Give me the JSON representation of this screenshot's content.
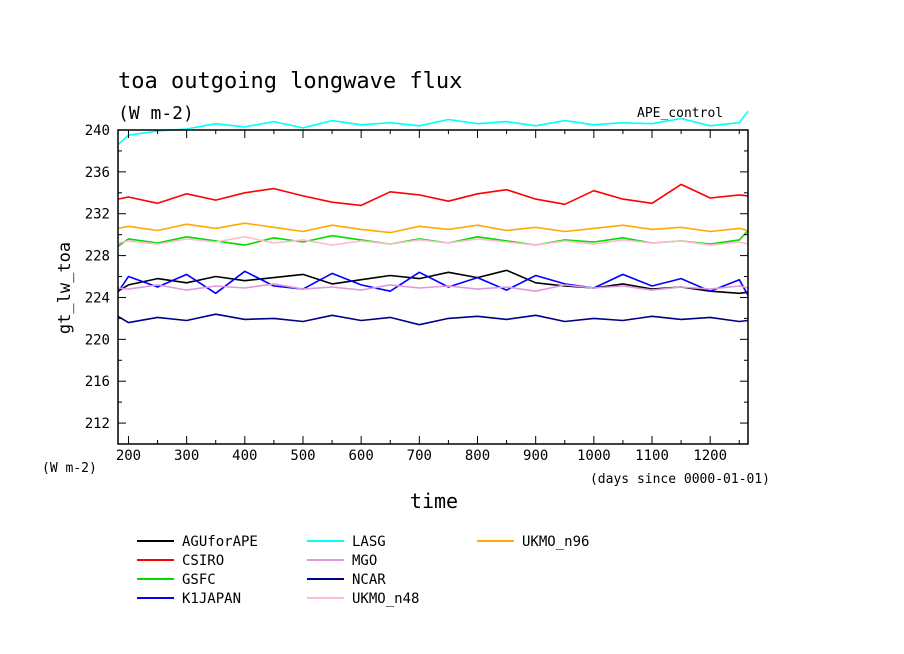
{
  "chart_data": {
    "type": "line",
    "title": "toa outgoing longwave flux",
    "units": "(W m-2)",
    "units_axis_label": "(W m-2)",
    "experiment": "APE_control",
    "ylabel": "gt_lw_toa",
    "xlabel": "time",
    "x_unit_note": "(days since 0000-01-01)",
    "xlim": [
      182,
      1265
    ],
    "ylim": [
      210,
      240
    ],
    "xticks": [
      200,
      300,
      400,
      500,
      600,
      700,
      800,
      900,
      1000,
      1100,
      1200
    ],
    "xtick_labels": [
      "200",
      "300",
      "400",
      "500",
      "600",
      "700",
      "800",
      "900",
      "1000",
      "1100",
      "1200"
    ],
    "yticks": [
      212,
      216,
      220,
      224,
      228,
      232,
      236,
      240
    ],
    "ytick_labels": [
      "212",
      "216",
      "220",
      "224",
      "228",
      "232",
      "236",
      "240"
    ],
    "grid": false,
    "legend_position": "bottom",
    "series": [
      {
        "name": "AGUforAPE",
        "color": "#000000",
        "x": [
          182,
          200,
          250,
          300,
          350,
          400,
          450,
          500,
          550,
          600,
          650,
          700,
          750,
          800,
          850,
          900,
          950,
          1000,
          1050,
          1100,
          1150,
          1200,
          1250,
          1265
        ],
        "values": [
          224.6,
          225.2,
          225.8,
          225.4,
          226.0,
          225.6,
          225.9,
          226.2,
          225.3,
          225.7,
          226.1,
          225.8,
          226.4,
          225.9,
          226.6,
          225.4,
          225.1,
          224.9,
          225.3,
          224.8,
          225.0,
          224.6,
          224.4,
          224.5
        ]
      },
      {
        "name": "CSIRO",
        "color": "#ff0000",
        "x": [
          182,
          200,
          250,
          300,
          350,
          400,
          450,
          500,
          550,
          600,
          650,
          700,
          750,
          800,
          850,
          900,
          950,
          1000,
          1050,
          1100,
          1150,
          1200,
          1250,
          1265
        ],
        "values": [
          233.4,
          233.6,
          233.0,
          233.9,
          233.3,
          234.0,
          234.4,
          233.7,
          233.1,
          232.8,
          234.1,
          233.8,
          233.2,
          233.9,
          234.3,
          233.4,
          232.9,
          234.2,
          233.4,
          233.0,
          234.8,
          233.5,
          233.8,
          233.7
        ]
      },
      {
        "name": "GSFC",
        "color": "#00dd00",
        "x": [
          182,
          200,
          250,
          300,
          350,
          400,
          450,
          500,
          550,
          600,
          650,
          700,
          750,
          800,
          850,
          900,
          950,
          1000,
          1050,
          1100,
          1150,
          1200,
          1250,
          1265
        ],
        "values": [
          228.9,
          229.6,
          229.2,
          229.8,
          229.4,
          229.0,
          229.7,
          229.3,
          229.9,
          229.5,
          229.1,
          229.6,
          229.2,
          229.8,
          229.4,
          229.0,
          229.5,
          229.3,
          229.7,
          229.2,
          229.4,
          229.1,
          229.5,
          230.4
        ]
      },
      {
        "name": "K1JAPAN",
        "color": "#0000ff",
        "x": [
          182,
          200,
          250,
          300,
          350,
          400,
          450,
          500,
          550,
          600,
          650,
          700,
          750,
          800,
          850,
          900,
          950,
          1000,
          1050,
          1100,
          1150,
          1200,
          1250,
          1265
        ],
        "values": [
          224.5,
          226.0,
          225.0,
          226.2,
          224.4,
          226.5,
          225.1,
          224.8,
          226.3,
          225.2,
          224.6,
          226.4,
          225.0,
          225.9,
          224.7,
          226.1,
          225.3,
          224.9,
          226.2,
          225.1,
          225.8,
          224.6,
          225.7,
          224.2
        ]
      },
      {
        "name": "LASG",
        "color": "#00ffff",
        "x": [
          182,
          200,
          250,
          300,
          350,
          400,
          450,
          500,
          550,
          600,
          650,
          700,
          750,
          800,
          850,
          900,
          950,
          1000,
          1050,
          1100,
          1150,
          1200,
          1250,
          1265
        ],
        "values": [
          238.6,
          239.5,
          239.9,
          240.1,
          240.6,
          240.3,
          240.8,
          240.2,
          240.9,
          240.5,
          240.7,
          240.4,
          241.0,
          240.6,
          240.8,
          240.4,
          240.9,
          240.5,
          240.7,
          240.6,
          241.1,
          240.4,
          240.7,
          241.8
        ]
      },
      {
        "name": "MGO",
        "color": "#dd99dd",
        "x": [
          182,
          200,
          250,
          300,
          350,
          400,
          450,
          500,
          550,
          600,
          650,
          700,
          750,
          800,
          850,
          900,
          950,
          1000,
          1050,
          1100,
          1150,
          1200,
          1250,
          1265
        ],
        "values": [
          224.9,
          224.8,
          225.2,
          224.7,
          225.1,
          224.9,
          225.3,
          224.8,
          225.0,
          224.7,
          225.2,
          224.9,
          225.1,
          224.8,
          225.0,
          224.6,
          225.2,
          224.9,
          225.1,
          224.7,
          225.0,
          224.8,
          225.1,
          224.9
        ]
      },
      {
        "name": "NCAR",
        "color": "#000088",
        "x": [
          182,
          200,
          250,
          300,
          350,
          400,
          450,
          500,
          550,
          600,
          650,
          700,
          750,
          800,
          850,
          900,
          950,
          1000,
          1050,
          1100,
          1150,
          1200,
          1250,
          1265
        ],
        "values": [
          222.2,
          221.6,
          222.1,
          221.8,
          222.4,
          221.9,
          222.0,
          221.7,
          222.3,
          221.8,
          222.1,
          221.4,
          222.0,
          222.2,
          221.9,
          222.3,
          221.7,
          222.0,
          221.8,
          222.2,
          221.9,
          222.1,
          221.7,
          221.8
        ]
      },
      {
        "name": "UKMO_n48",
        "color": "#ffbbcc",
        "x": [
          182,
          200,
          250,
          300,
          350,
          400,
          450,
          500,
          550,
          600,
          650,
          700,
          750,
          800,
          850,
          900,
          950,
          1000,
          1050,
          1100,
          1150,
          1200,
          1250,
          1265
        ],
        "values": [
          229.2,
          229.4,
          229.1,
          229.6,
          229.3,
          229.8,
          229.2,
          229.5,
          229.0,
          229.4,
          229.1,
          229.5,
          229.2,
          229.6,
          229.3,
          229.0,
          229.4,
          229.1,
          229.5,
          229.2,
          229.4,
          229.0,
          229.3,
          229.1
        ]
      },
      {
        "name": "UKMO_n96",
        "color": "#ffaa00",
        "x": [
          182,
          200,
          250,
          300,
          350,
          400,
          450,
          500,
          550,
          600,
          650,
          700,
          750,
          800,
          850,
          900,
          950,
          1000,
          1050,
          1100,
          1150,
          1200,
          1250,
          1265
        ],
        "values": [
          230.6,
          230.8,
          230.4,
          231.0,
          230.6,
          231.1,
          230.7,
          230.3,
          230.9,
          230.5,
          230.2,
          230.8,
          230.5,
          230.9,
          230.4,
          230.7,
          230.3,
          230.6,
          230.9,
          230.5,
          230.7,
          230.3,
          230.6,
          230.4
        ]
      }
    ]
  }
}
